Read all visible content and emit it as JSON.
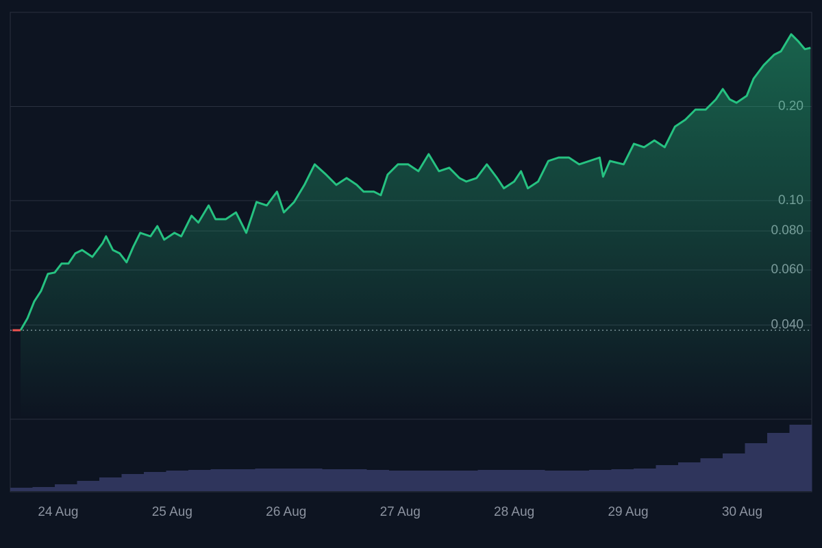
{
  "chart_data": {
    "type": "line",
    "log_scale": true,
    "grid": true,
    "x": [
      23.6,
      23.67,
      23.73,
      23.79,
      23.85,
      23.91,
      23.97,
      24.03,
      24.09,
      24.15,
      24.21,
      24.3,
      24.39,
      24.42,
      24.48,
      24.54,
      24.6,
      24.66,
      24.72,
      24.81,
      24.87,
      24.93,
      25.02,
      25.08,
      25.17,
      25.23,
      25.32,
      25.38,
      25.47,
      25.56,
      25.65,
      25.74,
      25.83,
      25.92,
      25.98,
      26.07,
      26.16,
      26.25,
      26.35,
      26.44,
      26.53,
      26.62,
      26.68,
      26.77,
      26.83,
      26.89,
      26.98,
      27.07,
      27.16,
      27.25,
      27.34,
      27.43,
      27.52,
      27.58,
      27.67,
      27.76,
      27.85,
      27.91,
      28.0,
      28.06,
      28.12,
      28.21,
      28.3,
      28.39,
      28.48,
      28.57,
      28.66,
      28.75,
      28.78,
      28.84,
      28.96,
      29.05,
      29.14,
      29.23,
      29.32,
      29.41,
      29.5,
      29.59,
      29.68,
      29.77,
      29.83,
      29.89,
      29.95,
      30.04,
      30.1,
      30.19,
      30.28,
      30.34,
      30.43,
      30.49,
      30.55,
      30.6
    ],
    "series": [
      {
        "color": "#26c281",
        "below_color": "#ef5350",
        "values": [
          0.0385,
          0.0385,
          0.042,
          0.0476,
          0.0514,
          0.0583,
          0.0589,
          0.0629,
          0.0629,
          0.0678,
          0.0695,
          0.0661,
          0.0731,
          0.0769,
          0.0695,
          0.0678,
          0.0635,
          0.0713,
          0.0789,
          0.0769,
          0.0829,
          0.075,
          0.0789,
          0.0769,
          0.0895,
          0.0851,
          0.0965,
          0.0872,
          0.0872,
          0.0917,
          0.0789,
          0.099,
          0.0965,
          0.1068,
          0.0917,
          0.099,
          0.1123,
          0.1306,
          0.1211,
          0.1123,
          0.1181,
          0.1123,
          0.1068,
          0.1068,
          0.1041,
          0.1211,
          0.1306,
          0.1306,
          0.1242,
          0.1408,
          0.1242,
          0.1274,
          0.1181,
          0.1151,
          0.1181,
          0.1306,
          0.1181,
          0.1095,
          0.1151,
          0.1242,
          0.1095,
          0.1151,
          0.1339,
          0.1373,
          0.1373,
          0.1306,
          0.1339,
          0.1373,
          0.1193,
          0.1339,
          0.1306,
          0.152,
          0.1482,
          0.1558,
          0.1482,
          0.1724,
          0.1813,
          0.1955,
          0.1955,
          0.2108,
          0.2274,
          0.2108,
          0.2056,
          0.2163,
          0.2454,
          0.2714,
          0.2928,
          0.3002,
          0.3404,
          0.3238,
          0.3049,
          0.3081
        ]
      }
    ],
    "xlim": [
      23.58,
      30.61
    ],
    "xticks": [
      {
        "value": 24,
        "label": "24 Aug"
      },
      {
        "value": 25,
        "label": "25 Aug"
      },
      {
        "value": 26,
        "label": "26 Aug"
      },
      {
        "value": 27,
        "label": "27 Aug"
      },
      {
        "value": 28,
        "label": "28 Aug"
      },
      {
        "value": 29,
        "label": "29 Aug"
      },
      {
        "value": 30,
        "label": "30 Aug"
      }
    ],
    "ylim": [
      0.02,
      0.4
    ],
    "yticks": [
      {
        "value": 0.2,
        "label": "0.20"
      },
      {
        "value": 0.1,
        "label": "0.10"
      },
      {
        "value": 0.08,
        "label": "0.080"
      },
      {
        "value": 0.06,
        "label": "0.060"
      },
      {
        "value": 0.04,
        "label": "0.040"
      }
    ],
    "volume": {
      "color": "#2f355c",
      "ylim": [
        0,
        100
      ],
      "values": [
        5,
        6,
        10,
        15,
        20,
        25,
        28,
        30,
        31,
        32,
        32,
        33,
        33,
        33,
        32,
        32,
        31,
        30,
        30,
        30,
        30,
        31,
        31,
        31,
        30,
        30,
        31,
        32,
        33,
        38,
        42,
        48,
        55,
        70,
        85,
        97
      ]
    }
  }
}
